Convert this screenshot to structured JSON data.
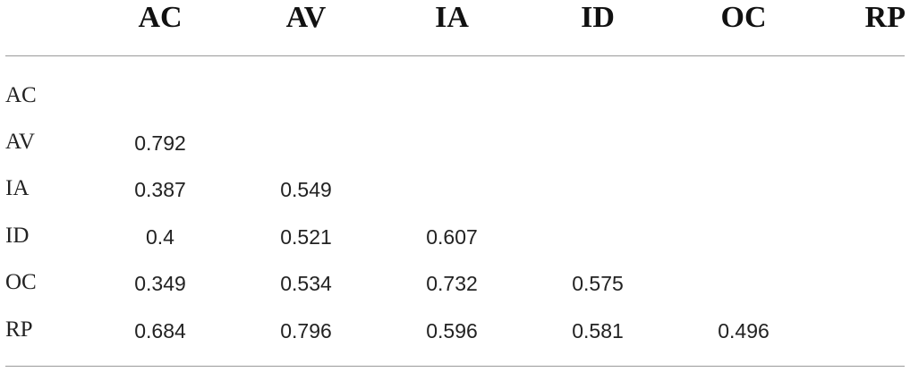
{
  "table": {
    "columns": [
      "AC",
      "AV",
      "IA",
      "ID",
      "OC",
      "RP"
    ],
    "rows": [
      {
        "label": "AC",
        "values": [
          "",
          "",
          "",
          "",
          "",
          ""
        ]
      },
      {
        "label": "AV",
        "values": [
          "0.792",
          "",
          "",
          "",
          "",
          ""
        ]
      },
      {
        "label": "IA",
        "values": [
          "0.387",
          "0.549",
          "",
          "",
          "",
          ""
        ]
      },
      {
        "label": "ID",
        "values": [
          "0.4",
          "0.521",
          "0.607",
          "",
          "",
          ""
        ]
      },
      {
        "label": "OC",
        "values": [
          "0.349",
          "0.534",
          "0.732",
          "0.575",
          "",
          ""
        ]
      },
      {
        "label": "RP",
        "values": [
          "0.684",
          "0.796",
          "0.596",
          "0.581",
          "0.496",
          ""
        ]
      }
    ]
  }
}
